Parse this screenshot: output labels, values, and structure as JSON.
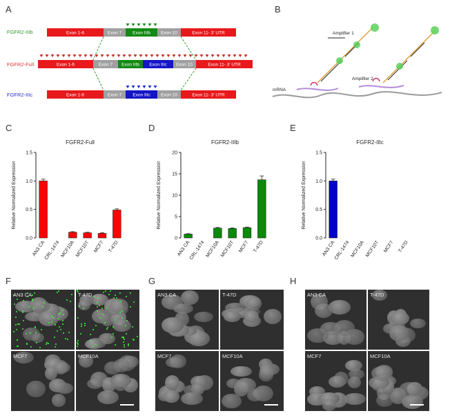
{
  "panels": {
    "A": "A",
    "B": "B",
    "C": "C",
    "D": "D",
    "E": "E",
    "F": "F",
    "G": "G",
    "H": "H"
  },
  "panel_a": {
    "isoforms": [
      {
        "name": "FGFR2-IIIb",
        "color": "#2a9a2a"
      },
      {
        "name": "FGFR2-Full",
        "color": "#e53030"
      },
      {
        "name": "FGFR2-IIIc",
        "color": "#2a2ad0"
      }
    ],
    "exons": {
      "e1_6": "Exon 1-6",
      "e7": "Exon 7",
      "e3b": "Exon IIIb",
      "e3c": "Exon IIIc",
      "e10": "Exon 10",
      "e11": "Exon 11- 3' UTR",
      "e11b": "Exon 11- 3' UTR"
    },
    "colors": {
      "red": "#e8191c",
      "grey": "#a0a0a0",
      "green": "#138a13",
      "blue": "#1515c8",
      "probe_red": "#c0302a",
      "probe_green": "#1c8a1c",
      "probe_blue": "#1a2ad0"
    }
  },
  "panel_b": {
    "amplifier1": "Amplifier 1",
    "amplifier2": "Amplifier 2",
    "mrna": "mRNA"
  },
  "chart_data": [
    {
      "type": "bar",
      "title": "FGFR2-Full",
      "ylabel": "Relative Normalized Expression",
      "categories": [
        "AN3 CA",
        "CRL-1474",
        "MCF10A",
        "MCF10T",
        "MCF7",
        "T-47D"
      ],
      "values": [
        1.0,
        0.0,
        0.1,
        0.09,
        0.08,
        0.49
      ],
      "errors": [
        0.03,
        0.0,
        0.01,
        0.01,
        0.01,
        0.02
      ],
      "ylim": [
        0,
        1.5
      ],
      "yticks": [
        "0.0",
        "0.5",
        "1.0",
        "1.5"
      ],
      "color": "#ff0000"
    },
    {
      "type": "bar",
      "title": "FGFR2-IIIb",
      "ylabel": "Relative Normalized Expression",
      "categories": [
        "AN3 CA",
        "CRL-1474",
        "MCF10A",
        "MCF10T",
        "MCF7",
        "T-47D"
      ],
      "values": [
        0.9,
        0.0,
        2.3,
        2.2,
        2.4,
        13.6
      ],
      "errors": [
        0.1,
        0.0,
        0.15,
        0.15,
        0.15,
        0.9
      ],
      "ylim": [
        0,
        20
      ],
      "yticks": [
        "0",
        "5",
        "10",
        "15",
        "20"
      ],
      "color": "#0a8a0a"
    },
    {
      "type": "bar",
      "title": "FGFR2-IIIc",
      "ylabel": "Relative Normalized Expression",
      "categories": [
        "AN3 CA",
        "CRL-1474",
        "MCF10A",
        "MCF10T",
        "MCF7",
        "T-47D"
      ],
      "values": [
        1.0,
        0.0,
        0.0,
        0.0,
        0.0,
        0.0
      ],
      "errors": [
        0.03,
        0.0,
        0.0,
        0.0,
        0.0,
        0.0
      ],
      "ylim": [
        0,
        1.5
      ],
      "yticks": [
        "0.0",
        "0.5",
        "1.0",
        "1.5"
      ],
      "color": "#0000cc"
    }
  ],
  "micrographs": [
    {
      "panel": "F",
      "labels": [
        "AN3 CA",
        "T-47D",
        "MCF7",
        "MCF10A"
      ],
      "dots": [
        true,
        true,
        false,
        false
      ]
    },
    {
      "panel": "G",
      "labels": [
        "AN3 CA",
        "T-47D",
        "MCF7",
        "MCF10A"
      ],
      "dots": [
        false,
        false,
        false,
        false
      ]
    },
    {
      "panel": "H",
      "labels": [
        "AN3 CA",
        "T-47D",
        "MCF7",
        "MCF10A"
      ],
      "dots": [
        false,
        false,
        false,
        false
      ]
    }
  ]
}
